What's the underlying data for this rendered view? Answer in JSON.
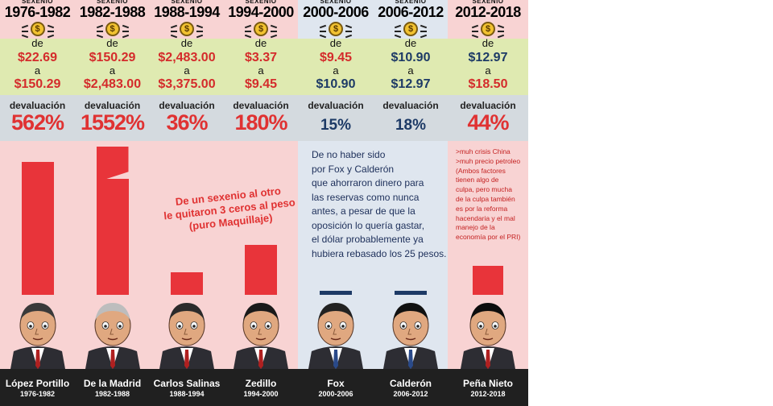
{
  "header_label": "SEXENIO",
  "connector_de": "de",
  "connector_a": "a",
  "devaluation_label": "devaluación",
  "coin_symbol": "$",
  "colors": {
    "red_bg": "#f8d3d3",
    "blue_bg": "#dfe6ef",
    "bar": "#e8343a",
    "navy": "#1d3a66"
  },
  "periods": [
    {
      "years": "1976-1982",
      "from": "$22.69",
      "to": "$150.29",
      "devaluation": "562%",
      "president": "López Portillo",
      "term": "1976-1982",
      "theme": "red",
      "value_color": "red"
    },
    {
      "years": "1982-1988",
      "from": "$150.29",
      "to": "$2,483.00",
      "devaluation": "1552%",
      "president": "De la Madrid",
      "term": "1982-1988",
      "theme": "red",
      "value_color": "red"
    },
    {
      "years": "1988-1994",
      "from": "$2,483.00",
      "to": "$3,375.00",
      "devaluation": "36%",
      "president": "Carlos Salinas",
      "term": "1988-1994",
      "theme": "red",
      "value_color": "red"
    },
    {
      "years": "1994-2000",
      "from": "$3.37",
      "to": "$9.45",
      "devaluation": "180%",
      "president": "Zedillo",
      "term": "1994-2000",
      "theme": "red",
      "value_color": "red"
    },
    {
      "years": "2000-2006",
      "from": "$9.45",
      "to": "$10.90",
      "devaluation": "15%",
      "president": "Fox",
      "term": "2000-2006",
      "theme": "blue",
      "value_color": "mixed"
    },
    {
      "years": "2006-2012",
      "from": "$10.90",
      "to": "$12.97",
      "devaluation": "18%",
      "president": "Calderón",
      "term": "2006-2012",
      "theme": "blue",
      "value_color": "blue"
    },
    {
      "years": "2012-2018",
      "from": "$12.97",
      "to": "$18.50",
      "devaluation": "44%",
      "president": "Peña Nieto",
      "term": "2012-2018",
      "theme": "red",
      "value_color": "mixed"
    }
  ],
  "notes": {
    "middle": [
      "De un sexenio al otro",
      "le quitaron 3 ceros al peso",
      "(puro Maquillaje)"
    ],
    "fox_calderon": [
      "De no haber sido",
      "por Fox y Calderón",
      "que ahorraron dinero para",
      "las reservas como nunca",
      "antes, a pesar de que la",
      "oposición lo quería gastar,",
      "el dólar probablemente ya",
      "hubiera rebasado los 25 pesos."
    ],
    "pena": [
      ">muh crisis China",
      ">muh precio petroleo",
      "(Ambos factores",
      "tienen algo de",
      "culpa, pero mucha",
      "de la culpa también",
      "es por la reforma",
      "hacendaria y el mal",
      "manejo de la",
      "economía por el PRI)"
    ]
  },
  "chart_data": {
    "type": "bar",
    "title": "",
    "xlabel": "",
    "ylabel": "",
    "categories": [
      "1976-1982",
      "1982-1988",
      "1988-1994",
      "1994-2000",
      "2000-2006",
      "2006-2012",
      "2012-2018"
    ],
    "series": [
      {
        "values": [
          562,
          1552,
          36,
          180,
          15,
          18,
          44
        ]
      }
    ],
    "ylim": [
      0,
      1552
    ],
    "grid": false,
    "legend": "none"
  }
}
